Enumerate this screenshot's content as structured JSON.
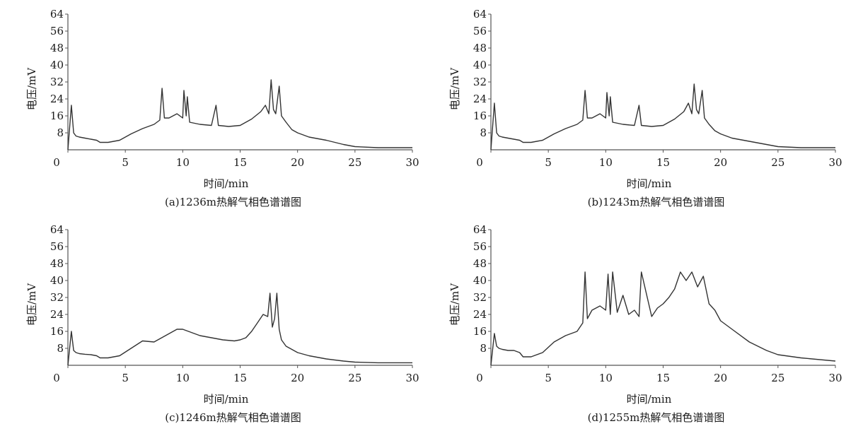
{
  "chart_data": [
    {
      "type": "line",
      "caption": "(a)1236m热解气相色谱谱图",
      "xlabel": "时间/min",
      "ylabel": "电压/mV",
      "xlim": [
        0,
        30
      ],
      "ylim": [
        0,
        64
      ],
      "xticks": [
        0,
        5,
        10,
        15,
        20,
        25,
        30
      ],
      "yticks": [
        8,
        16,
        24,
        32,
        40,
        48,
        56,
        64
      ],
      "grid": false,
      "line_color": "#333333",
      "series": [
        {
          "x": [
            0,
            0.3,
            0.5,
            0.7,
            1.0,
            1.5,
            2.0,
            2.5,
            2.8,
            3.5,
            4.5,
            5.5,
            6.5,
            7.5,
            8.0,
            8.2,
            8.4,
            8.8,
            9.5,
            10.0,
            10.1,
            10.3,
            10.4,
            10.6,
            11.5,
            12.5,
            12.9,
            13.1,
            14.0,
            15.0,
            16.0,
            16.8,
            17.2,
            17.5,
            17.7,
            17.9,
            18.1,
            18.4,
            18.6,
            19.0,
            19.5,
            20.0,
            21.0,
            22.5,
            24.0,
            25.0,
            27.0,
            30.0
          ],
          "y": [
            0,
            21,
            8,
            6.5,
            6,
            5.5,
            5,
            4.5,
            3.5,
            3.5,
            4.5,
            7.5,
            10,
            12,
            14,
            29,
            15,
            15,
            17,
            15,
            28,
            16,
            25,
            13,
            12,
            11.5,
            21,
            11.5,
            11,
            11.5,
            14.5,
            18,
            21,
            17,
            33,
            19,
            17,
            30,
            16,
            13,
            9.5,
            8,
            6,
            4.5,
            2.5,
            1.5,
            1,
            1
          ]
        }
      ]
    },
    {
      "type": "line",
      "caption": "(b)1243m热解气相色谱谱图",
      "xlabel": "时间/min",
      "ylabel": "电压/mV",
      "xlim": [
        0,
        30
      ],
      "ylim": [
        0,
        64
      ],
      "xticks": [
        0,
        5,
        10,
        15,
        20,
        25,
        30
      ],
      "yticks": [
        8,
        16,
        24,
        32,
        40,
        48,
        56,
        64
      ],
      "grid": false,
      "line_color": "#333333",
      "series": [
        {
          "x": [
            0,
            0.3,
            0.5,
            0.7,
            1.0,
            1.5,
            2.0,
            2.5,
            2.8,
            3.5,
            4.5,
            5.5,
            6.5,
            7.5,
            8.0,
            8.2,
            8.4,
            8.8,
            9.5,
            10.0,
            10.1,
            10.3,
            10.4,
            10.6,
            11.5,
            12.5,
            12.9,
            13.1,
            14.0,
            15.0,
            16.0,
            16.8,
            17.2,
            17.5,
            17.7,
            17.9,
            18.1,
            18.4,
            18.6,
            19.0,
            19.5,
            20.0,
            21.0,
            22.5,
            24.0,
            25.0,
            27.0,
            30.0
          ],
          "y": [
            0,
            22,
            8,
            6.5,
            6,
            5.5,
            5,
            4.5,
            3.5,
            3.5,
            4.5,
            7.5,
            10,
            12,
            14,
            28,
            15,
            15,
            17,
            15,
            27,
            16,
            25,
            13,
            12,
            11.5,
            21,
            11.5,
            11,
            11.5,
            14.5,
            18,
            22,
            17,
            31,
            19,
            17,
            28,
            15,
            12,
            9,
            7.5,
            5.5,
            4,
            2.5,
            1.5,
            1,
            1
          ]
        }
      ]
    },
    {
      "type": "line",
      "caption": "(c)1246m热解气相色谱谱图",
      "xlabel": "时间/min",
      "ylabel": "电压/mV",
      "xlim": [
        0,
        30
      ],
      "ylim": [
        0,
        64
      ],
      "xticks": [
        0,
        5,
        10,
        15,
        20,
        25,
        30
      ],
      "yticks": [
        8,
        16,
        24,
        32,
        40,
        48,
        56,
        64
      ],
      "grid": false,
      "line_color": "#333333",
      "series": [
        {
          "x": [
            0,
            0.3,
            0.5,
            0.7,
            1.0,
            1.5,
            2.0,
            2.5,
            2.8,
            3.5,
            4.5,
            5.5,
            6.5,
            7.5,
            8.5,
            9.5,
            10.0,
            10.5,
            11.5,
            12.5,
            13.5,
            14.5,
            15.0,
            15.5,
            16.0,
            16.5,
            17.0,
            17.4,
            17.6,
            17.8,
            18.0,
            18.2,
            18.4,
            18.6,
            19.0,
            19.5,
            20.0,
            21.0,
            22.5,
            24.0,
            25.0,
            27.0,
            30.0
          ],
          "y": [
            0,
            16,
            7,
            6,
            5.5,
            5.2,
            5,
            4.5,
            3.5,
            3.5,
            4.5,
            8,
            11.5,
            11,
            14,
            17,
            17,
            16,
            14,
            13,
            12,
            11.5,
            12,
            13,
            16,
            20,
            24,
            23,
            34,
            18,
            22,
            34,
            17,
            12,
            9,
            7.5,
            6,
            4.5,
            3,
            2,
            1.5,
            1.2,
            1.2
          ]
        }
      ]
    },
    {
      "type": "line",
      "caption": "(d)1255m热解气相色谱谱图",
      "xlabel": "时间/min",
      "ylabel": "电压/mV",
      "xlim": [
        0,
        30
      ],
      "ylim": [
        0,
        64
      ],
      "xticks": [
        0,
        5,
        10,
        15,
        20,
        25,
        30
      ],
      "yticks": [
        8,
        16,
        24,
        32,
        40,
        48,
        56,
        64
      ],
      "grid": false,
      "line_color": "#333333",
      "series": [
        {
          "x": [
            0,
            0.3,
            0.5,
            0.7,
            1.0,
            1.5,
            2.0,
            2.5,
            2.8,
            3.5,
            4.5,
            5.5,
            6.5,
            7.5,
            8.0,
            8.2,
            8.4,
            8.8,
            9.5,
            10.0,
            10.2,
            10.4,
            10.6,
            11.0,
            11.5,
            12.0,
            12.5,
            12.9,
            13.1,
            14.0,
            14.5,
            15.0,
            15.5,
            16.0,
            16.5,
            17.0,
            17.5,
            18.0,
            18.5,
            19.0,
            19.5,
            20.0,
            21.0,
            22.5,
            24.0,
            25.0,
            27.0,
            30.0
          ],
          "y": [
            0,
            15,
            9,
            8,
            7.5,
            7,
            7,
            6,
            4,
            4,
            6,
            11,
            14,
            16,
            20,
            44,
            22,
            26,
            28,
            26,
            43,
            24,
            44,
            25,
            33,
            24,
            26,
            23,
            44,
            23,
            27,
            29,
            32,
            36,
            44,
            40,
            44,
            37,
            42,
            29,
            26,
            21,
            17,
            11,
            7,
            5,
            3.5,
            2
          ]
        }
      ]
    }
  ]
}
